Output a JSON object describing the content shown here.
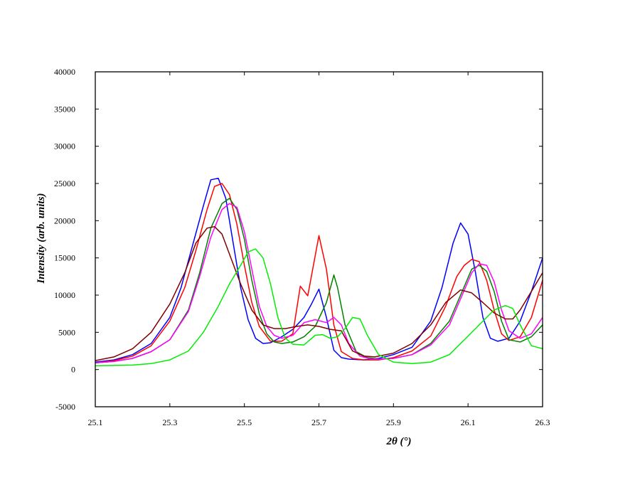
{
  "chart_data": {
    "type": "line",
    "title": "",
    "xlabel_prefix": "2",
    "xlabel_theta": "θ",
    "xlabel_suffix": " (°)",
    "ylabel": "Intensity (arb. units)",
    "xlim": [
      25.1,
      26.3
    ],
    "ylim": [
      -5000,
      40000
    ],
    "x_ticks": [
      "25.1",
      "25.3",
      "25.5",
      "25.7",
      "25.9",
      "26.1",
      "26.3"
    ],
    "y_ticks": [
      "-5000",
      "0",
      "5000",
      "10000",
      "15000",
      "20000",
      "25000",
      "30000",
      "35000",
      "40000"
    ],
    "grid": false,
    "legend": "none",
    "series": [
      {
        "color": "#0000ff",
        "x": [
          25.1,
          25.15,
          25.2,
          25.25,
          25.3,
          25.33,
          25.36,
          25.39,
          25.41,
          25.43,
          25.45,
          25.47,
          25.49,
          25.51,
          25.53,
          25.55,
          25.57,
          25.6,
          25.63,
          25.66,
          25.68,
          25.7,
          25.72,
          25.74,
          25.76,
          25.78,
          25.82,
          25.86,
          25.9,
          25.95,
          26.0,
          26.03,
          26.06,
          26.08,
          26.1,
          26.12,
          26.14,
          26.16,
          26.18,
          26.21,
          26.24,
          26.27,
          26.3
        ],
        "y": [
          1000,
          1300,
          2000,
          3500,
          7000,
          11000,
          16500,
          22000,
          25500,
          25700,
          23000,
          17000,
          11000,
          6700,
          4200,
          3500,
          3600,
          4400,
          5400,
          7000,
          8800,
          10800,
          7000,
          2600,
          1600,
          1400,
          1300,
          1500,
          2000,
          3000,
          6500,
          11000,
          17000,
          19700,
          18200,
          13000,
          7000,
          4200,
          3800,
          4200,
          6500,
          10500,
          15000
        ]
      },
      {
        "color": "#ff0000",
        "x": [
          25.1,
          25.15,
          25.2,
          25.25,
          25.3,
          25.34,
          25.37,
          25.4,
          25.42,
          25.44,
          25.46,
          25.48,
          25.5,
          25.52,
          25.54,
          25.57,
          25.6,
          25.63,
          25.65,
          25.67,
          25.7,
          25.72,
          25.74,
          25.76,
          25.79,
          25.82,
          25.86,
          25.9,
          25.95,
          26.0,
          26.04,
          26.07,
          26.09,
          26.11,
          26.13,
          26.15,
          26.17,
          26.19,
          26.21,
          26.24,
          26.27,
          26.3
        ],
        "y": [
          900,
          1200,
          1800,
          3200,
          6500,
          11000,
          16000,
          21500,
          24600,
          25000,
          23500,
          19500,
          14000,
          9000,
          5800,
          3800,
          3800,
          4800,
          11200,
          9900,
          18000,
          13500,
          6000,
          2400,
          1500,
          1300,
          1300,
          1600,
          2500,
          4500,
          8500,
          12500,
          14000,
          14800,
          14500,
          12000,
          8000,
          4800,
          3900,
          4400,
          7000,
          12000
        ]
      },
      {
        "color": "#008000",
        "x": [
          25.1,
          25.15,
          25.2,
          25.25,
          25.3,
          25.35,
          25.38,
          25.41,
          25.44,
          25.46,
          25.48,
          25.5,
          25.52,
          25.54,
          25.56,
          25.58,
          25.6,
          25.63,
          25.66,
          25.69,
          25.72,
          25.74,
          25.75,
          25.77,
          25.8,
          25.83,
          25.86,
          25.9,
          25.95,
          26.0,
          26.05,
          26.08,
          26.11,
          26.13,
          26.15,
          26.17,
          26.19,
          26.21,
          26.24,
          26.27,
          26.3
        ],
        "y": [
          900,
          1100,
          1500,
          2400,
          4000,
          8000,
          13000,
          19000,
          22300,
          23000,
          21500,
          17500,
          12000,
          7500,
          4800,
          3700,
          3500,
          3700,
          4400,
          5800,
          9000,
          12700,
          11000,
          6000,
          2400,
          1600,
          1400,
          1500,
          2000,
          3500,
          6500,
          10000,
          13500,
          14000,
          13200,
          10500,
          6500,
          4000,
          3700,
          4400,
          6000
        ]
      },
      {
        "color": "#ff00ff",
        "x": [
          25.1,
          25.15,
          25.2,
          25.25,
          25.3,
          25.35,
          25.38,
          25.41,
          25.44,
          25.46,
          25.48,
          25.5,
          25.52,
          25.54,
          25.56,
          25.58,
          25.6,
          25.63,
          25.66,
          25.69,
          25.72,
          25.74,
          25.76,
          25.78,
          25.81,
          25.84,
          25.87,
          25.9,
          25.95,
          26.0,
          26.05,
          26.08,
          26.11,
          26.13,
          26.15,
          26.17,
          26.19,
          26.21,
          26.24,
          26.27,
          26.3
        ],
        "y": [
          900,
          1100,
          1500,
          2400,
          4000,
          7800,
          12500,
          17800,
          21500,
          22300,
          21800,
          18500,
          13500,
          8500,
          5800,
          4600,
          4200,
          4600,
          6300,
          6700,
          6300,
          7000,
          6000,
          3500,
          1800,
          1400,
          1400,
          1500,
          2000,
          3300,
          6000,
          9500,
          13000,
          14200,
          14000,
          11800,
          8000,
          5200,
          4200,
          4800,
          7000
        ]
      },
      {
        "color": "#800000",
        "x": [
          25.1,
          25.15,
          25.2,
          25.25,
          25.3,
          25.34,
          25.37,
          25.4,
          25.42,
          25.44,
          25.46,
          25.49,
          25.52,
          25.55,
          25.58,
          25.61,
          25.64,
          25.67,
          25.7,
          25.73,
          25.76,
          25.79,
          25.82,
          25.85,
          25.9,
          25.95,
          26.0,
          26.04,
          26.08,
          26.11,
          26.14,
          26.17,
          26.2,
          26.22,
          26.24,
          26.27,
          26.3
        ],
        "y": [
          1200,
          1700,
          2800,
          5000,
          8800,
          13000,
          17000,
          19000,
          19200,
          18200,
          15500,
          11500,
          8000,
          6000,
          5500,
          5500,
          5800,
          6000,
          5800,
          5400,
          5200,
          2500,
          1800,
          1700,
          2200,
          3500,
          6000,
          9000,
          10700,
          10300,
          9000,
          7600,
          6800,
          6800,
          8000,
          10500,
          13000
        ]
      },
      {
        "color": "#00ee00",
        "x": [
          25.1,
          25.15,
          25.2,
          25.25,
          25.3,
          25.35,
          25.39,
          25.43,
          25.46,
          25.49,
          25.51,
          25.53,
          25.55,
          25.57,
          25.59,
          25.61,
          25.63,
          25.66,
          25.69,
          25.71,
          25.73,
          25.75,
          25.77,
          25.79,
          25.81,
          25.83,
          25.86,
          25.9,
          25.95,
          26.0,
          26.05,
          26.1,
          26.14,
          26.17,
          26.2,
          26.22,
          26.24,
          26.27,
          26.3
        ],
        "y": [
          500,
          550,
          600,
          800,
          1300,
          2500,
          5000,
          8500,
          11500,
          14000,
          15800,
          16200,
          15000,
          11500,
          7000,
          4200,
          3400,
          3300,
          4600,
          4700,
          4200,
          4400,
          5500,
          7000,
          6800,
          4600,
          2000,
          1000,
          800,
          1000,
          2000,
          4500,
          6500,
          8000,
          8600,
          8200,
          6000,
          3200,
          2800
        ]
      }
    ]
  }
}
